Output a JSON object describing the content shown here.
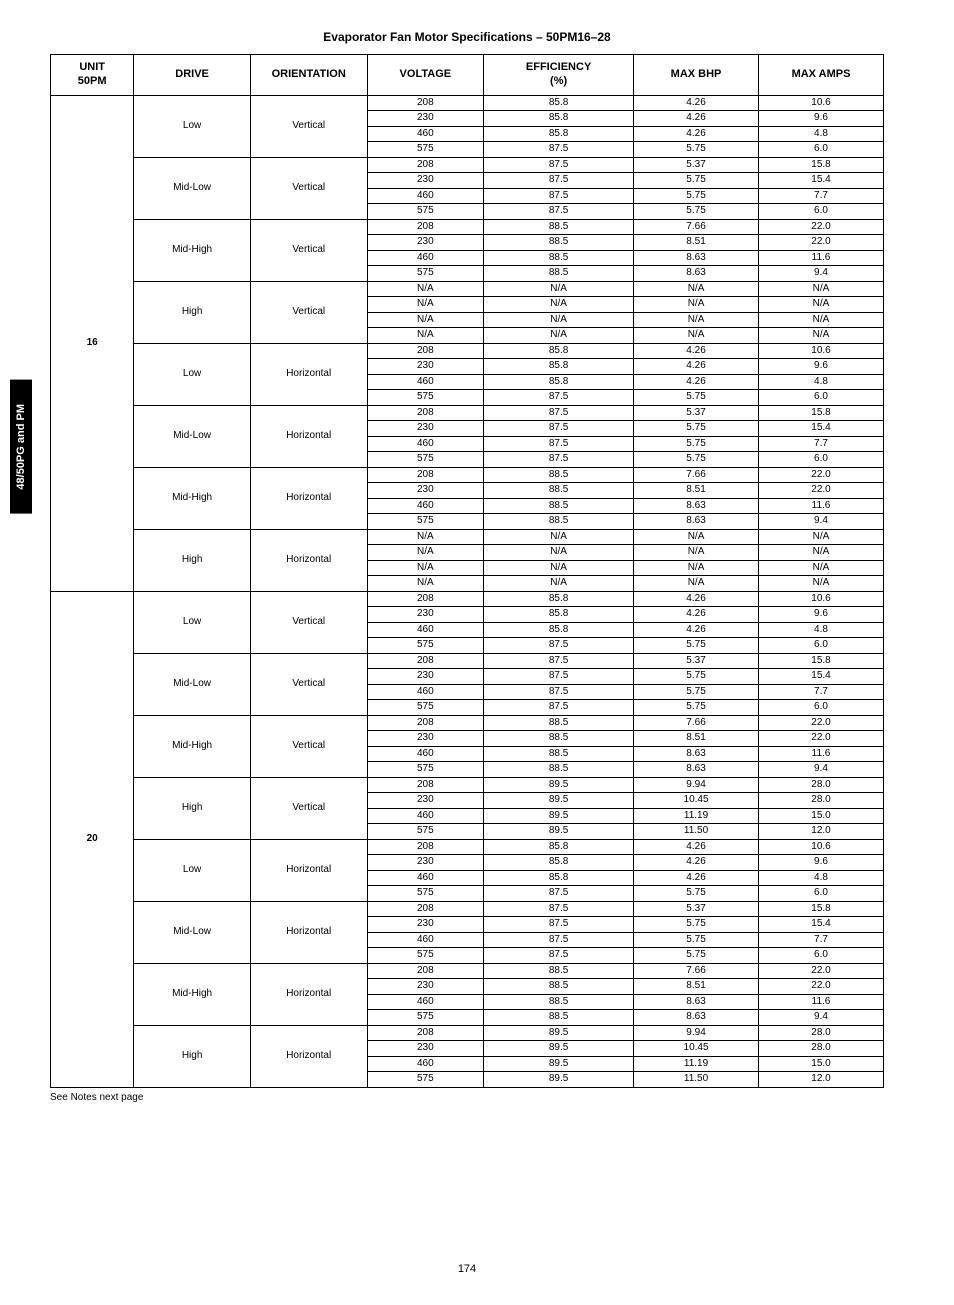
{
  "side_tab": "48/50PG  and PM",
  "title": "Evaporator Fan Motor Specifications – 50PM16–28",
  "footnote": "See Notes next page",
  "page_number": "174",
  "headers": {
    "unit": "UNIT\n50PM",
    "drive": "DRIVE",
    "orientation": "ORIENTATION",
    "voltage": "VOLTAGE",
    "efficiency": "EFFICIENCY\n(%)",
    "max_bhp": "MAX BHP",
    "max_amps": "MAX AMPS"
  },
  "units": [
    {
      "label": "16",
      "groups": [
        {
          "drive": "Low",
          "orientation": "Vertical",
          "rows": [
            {
              "v": "208",
              "e": "85.8",
              "b": "4.26",
              "a": "10.6"
            },
            {
              "v": "230",
              "e": "85.8",
              "b": "4.26",
              "a": "9.6"
            },
            {
              "v": "460",
              "e": "85.8",
              "b": "4.26",
              "a": "4.8"
            },
            {
              "v": "575",
              "e": "87.5",
              "b": "5.75",
              "a": "6.0"
            }
          ]
        },
        {
          "drive": "Mid-Low",
          "orientation": "Vertical",
          "rows": [
            {
              "v": "208",
              "e": "87.5",
              "b": "5.37",
              "a": "15.8"
            },
            {
              "v": "230",
              "e": "87.5",
              "b": "5.75",
              "a": "15.4"
            },
            {
              "v": "460",
              "e": "87.5",
              "b": "5.75",
              "a": "7.7"
            },
            {
              "v": "575",
              "e": "87.5",
              "b": "5.75",
              "a": "6.0"
            }
          ]
        },
        {
          "drive": "Mid-High",
          "orientation": "Vertical",
          "rows": [
            {
              "v": "208",
              "e": "88.5",
              "b": "7.66",
              "a": "22.0"
            },
            {
              "v": "230",
              "e": "88.5",
              "b": "8.51",
              "a": "22.0"
            },
            {
              "v": "460",
              "e": "88.5",
              "b": "8.63",
              "a": "11.6"
            },
            {
              "v": "575",
              "e": "88.5",
              "b": "8.63",
              "a": "9.4"
            }
          ]
        },
        {
          "drive": "High",
          "orientation": "Vertical",
          "rows": [
            {
              "v": "N/A",
              "e": "N/A",
              "b": "N/A",
              "a": "N/A"
            },
            {
              "v": "N/A",
              "e": "N/A",
              "b": "N/A",
              "a": "N/A"
            },
            {
              "v": "N/A",
              "e": "N/A",
              "b": "N/A",
              "a": "N/A"
            },
            {
              "v": "N/A",
              "e": "N/A",
              "b": "N/A",
              "a": "N/A"
            }
          ]
        },
        {
          "drive": "Low",
          "orientation": "Horizontal",
          "rows": [
            {
              "v": "208",
              "e": "85.8",
              "b": "4.26",
              "a": "10.6"
            },
            {
              "v": "230",
              "e": "85.8",
              "b": "4.26",
              "a": "9.6"
            },
            {
              "v": "460",
              "e": "85.8",
              "b": "4.26",
              "a": "4.8"
            },
            {
              "v": "575",
              "e": "87.5",
              "b": "5.75",
              "a": "6.0"
            }
          ]
        },
        {
          "drive": "Mid-Low",
          "orientation": "Horizontal",
          "rows": [
            {
              "v": "208",
              "e": "87.5",
              "b": "5.37",
              "a": "15.8"
            },
            {
              "v": "230",
              "e": "87.5",
              "b": "5.75",
              "a": "15.4"
            },
            {
              "v": "460",
              "e": "87.5",
              "b": "5.75",
              "a": "7.7"
            },
            {
              "v": "575",
              "e": "87.5",
              "b": "5.75",
              "a": "6.0"
            }
          ]
        },
        {
          "drive": "Mid-High",
          "orientation": "Horizontal",
          "rows": [
            {
              "v": "208",
              "e": "88.5",
              "b": "7.66",
              "a": "22.0"
            },
            {
              "v": "230",
              "e": "88.5",
              "b": "8.51",
              "a": "22.0"
            },
            {
              "v": "460",
              "e": "88.5",
              "b": "8.63",
              "a": "11.6"
            },
            {
              "v": "575",
              "e": "88.5",
              "b": "8.63",
              "a": "9.4"
            }
          ]
        },
        {
          "drive": "High",
          "orientation": "Horizontal",
          "rows": [
            {
              "v": "N/A",
              "e": "N/A",
              "b": "N/A",
              "a": "N/A"
            },
            {
              "v": "N/A",
              "e": "N/A",
              "b": "N/A",
              "a": "N/A"
            },
            {
              "v": "N/A",
              "e": "N/A",
              "b": "N/A",
              "a": "N/A"
            },
            {
              "v": "N/A",
              "e": "N/A",
              "b": "N/A",
              "a": "N/A"
            }
          ]
        }
      ]
    },
    {
      "label": "20",
      "groups": [
        {
          "drive": "Low",
          "orientation": "Vertical",
          "rows": [
            {
              "v": "208",
              "e": "85.8",
              "b": "4.26",
              "a": "10.6"
            },
            {
              "v": "230",
              "e": "85.8",
              "b": "4.26",
              "a": "9.6"
            },
            {
              "v": "460",
              "e": "85.8",
              "b": "4.26",
              "a": "4.8"
            },
            {
              "v": "575",
              "e": "87.5",
              "b": "5.75",
              "a": "6.0"
            }
          ]
        },
        {
          "drive": "Mid-Low",
          "orientation": "Vertical",
          "rows": [
            {
              "v": "208",
              "e": "87.5",
              "b": "5.37",
              "a": "15.8"
            },
            {
              "v": "230",
              "e": "87.5",
              "b": "5.75",
              "a": "15.4"
            },
            {
              "v": "460",
              "e": "87.5",
              "b": "5.75",
              "a": "7.7"
            },
            {
              "v": "575",
              "e": "87.5",
              "b": "5.75",
              "a": "6.0"
            }
          ]
        },
        {
          "drive": "Mid-High",
          "orientation": "Vertical",
          "rows": [
            {
              "v": "208",
              "e": "88.5",
              "b": "7.66",
              "a": "22.0"
            },
            {
              "v": "230",
              "e": "88.5",
              "b": "8.51",
              "a": "22.0"
            },
            {
              "v": "460",
              "e": "88.5",
              "b": "8.63",
              "a": "11.6"
            },
            {
              "v": "575",
              "e": "88.5",
              "b": "8.63",
              "a": "9.4"
            }
          ]
        },
        {
          "drive": "High",
          "orientation": "Vertical",
          "rows": [
            {
              "v": "208",
              "e": "89.5",
              "b": "9.94",
              "a": "28.0"
            },
            {
              "v": "230",
              "e": "89.5",
              "b": "10.45",
              "a": "28.0"
            },
            {
              "v": "460",
              "e": "89.5",
              "b": "11.19",
              "a": "15.0"
            },
            {
              "v": "575",
              "e": "89.5",
              "b": "11.50",
              "a": "12.0"
            }
          ]
        },
        {
          "drive": "Low",
          "orientation": "Horizontal",
          "rows": [
            {
              "v": "208",
              "e": "85.8",
              "b": "4.26",
              "a": "10.6"
            },
            {
              "v": "230",
              "e": "85.8",
              "b": "4.26",
              "a": "9.6"
            },
            {
              "v": "460",
              "e": "85.8",
              "b": "4.26",
              "a": "4.8"
            },
            {
              "v": "575",
              "e": "87.5",
              "b": "5.75",
              "a": "6.0"
            }
          ]
        },
        {
          "drive": "Mid-Low",
          "orientation": "Horizontal",
          "rows": [
            {
              "v": "208",
              "e": "87.5",
              "b": "5.37",
              "a": "15.8"
            },
            {
              "v": "230",
              "e": "87.5",
              "b": "5.75",
              "a": "15.4"
            },
            {
              "v": "460",
              "e": "87.5",
              "b": "5.75",
              "a": "7.7"
            },
            {
              "v": "575",
              "e": "87.5",
              "b": "5.75",
              "a": "6.0"
            }
          ]
        },
        {
          "drive": "Mid-High",
          "orientation": "Horizontal",
          "rows": [
            {
              "v": "208",
              "e": "88.5",
              "b": "7.66",
              "a": "22.0"
            },
            {
              "v": "230",
              "e": "88.5",
              "b": "8.51",
              "a": "22.0"
            },
            {
              "v": "460",
              "e": "88.5",
              "b": "8.63",
              "a": "11.6"
            },
            {
              "v": "575",
              "e": "88.5",
              "b": "8.63",
              "a": "9.4"
            }
          ]
        },
        {
          "drive": "High",
          "orientation": "Horizontal",
          "rows": [
            {
              "v": "208",
              "e": "89.5",
              "b": "9.94",
              "a": "28.0"
            },
            {
              "v": "230",
              "e": "89.5",
              "b": "10.45",
              "a": "28.0"
            },
            {
              "v": "460",
              "e": "89.5",
              "b": "11.19",
              "a": "15.0"
            },
            {
              "v": "575",
              "e": "89.5",
              "b": "11.50",
              "a": "12.0"
            }
          ]
        }
      ]
    }
  ]
}
